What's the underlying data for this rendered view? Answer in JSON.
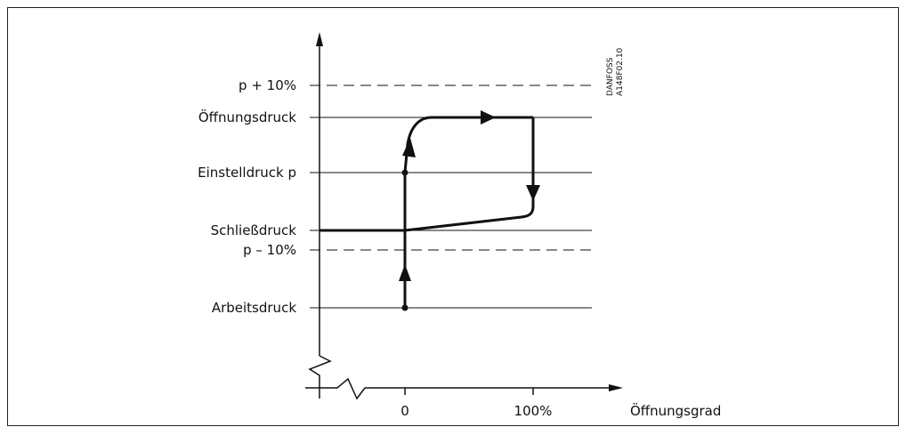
{
  "levels": [
    {
      "key": "p_plus_10",
      "label": "p + 10%",
      "style": "dashed"
    },
    {
      "key": "opening",
      "label": "Öffnungsdruck",
      "style": "solid"
    },
    {
      "key": "set",
      "label": "Einstelldruck p",
      "style": "solid"
    },
    {
      "key": "closing",
      "label": "Schließdruck",
      "style": "solid"
    },
    {
      "key": "p_minus_10",
      "label": "p – 10%",
      "style": "dashed"
    },
    {
      "key": "working",
      "label": "Arbeitsdruck",
      "style": "solid"
    }
  ],
  "x_axis": {
    "label": "Öffnungsgrad",
    "ticks": [
      "0",
      "100%"
    ]
  },
  "watermark": {
    "line1": "DANFOSS",
    "line2": "A148F02.10"
  },
  "colors": {
    "line": "#111111",
    "frame": "#222222"
  }
}
